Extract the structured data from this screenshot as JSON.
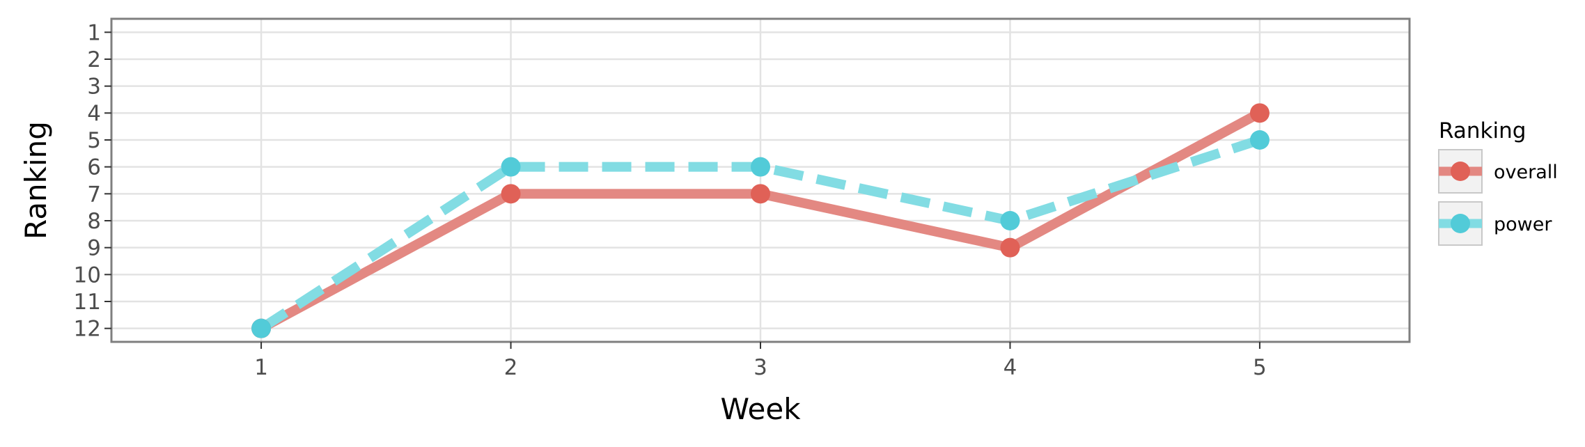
{
  "chart_data": {
    "type": "line",
    "xlabel": "Week",
    "ylabel": "Ranking",
    "x": [
      1,
      2,
      3,
      4,
      5
    ],
    "x_ticks": [
      "1",
      "2",
      "3",
      "4",
      "5"
    ],
    "xlim": [
      0.4,
      5.6
    ],
    "y_ticks": [
      "1",
      "2",
      "3",
      "4",
      "5",
      "6",
      "7",
      "8",
      "9",
      "10",
      "11",
      "12"
    ],
    "ylim": [
      12.5,
      0.5
    ],
    "y_reversed": true,
    "grid": true,
    "legend": {
      "title": "Ranking",
      "position": "right"
    },
    "series": [
      {
        "name": "overall",
        "values": [
          12,
          7,
          7,
          9,
          4
        ],
        "color": "#e06157",
        "line_color": "#e38882",
        "dash": "solid"
      },
      {
        "name": "power",
        "values": [
          12,
          6,
          6,
          8,
          5
        ],
        "color": "#52cbd8",
        "line_color": "#82dce3",
        "dash": "dashed"
      }
    ]
  }
}
